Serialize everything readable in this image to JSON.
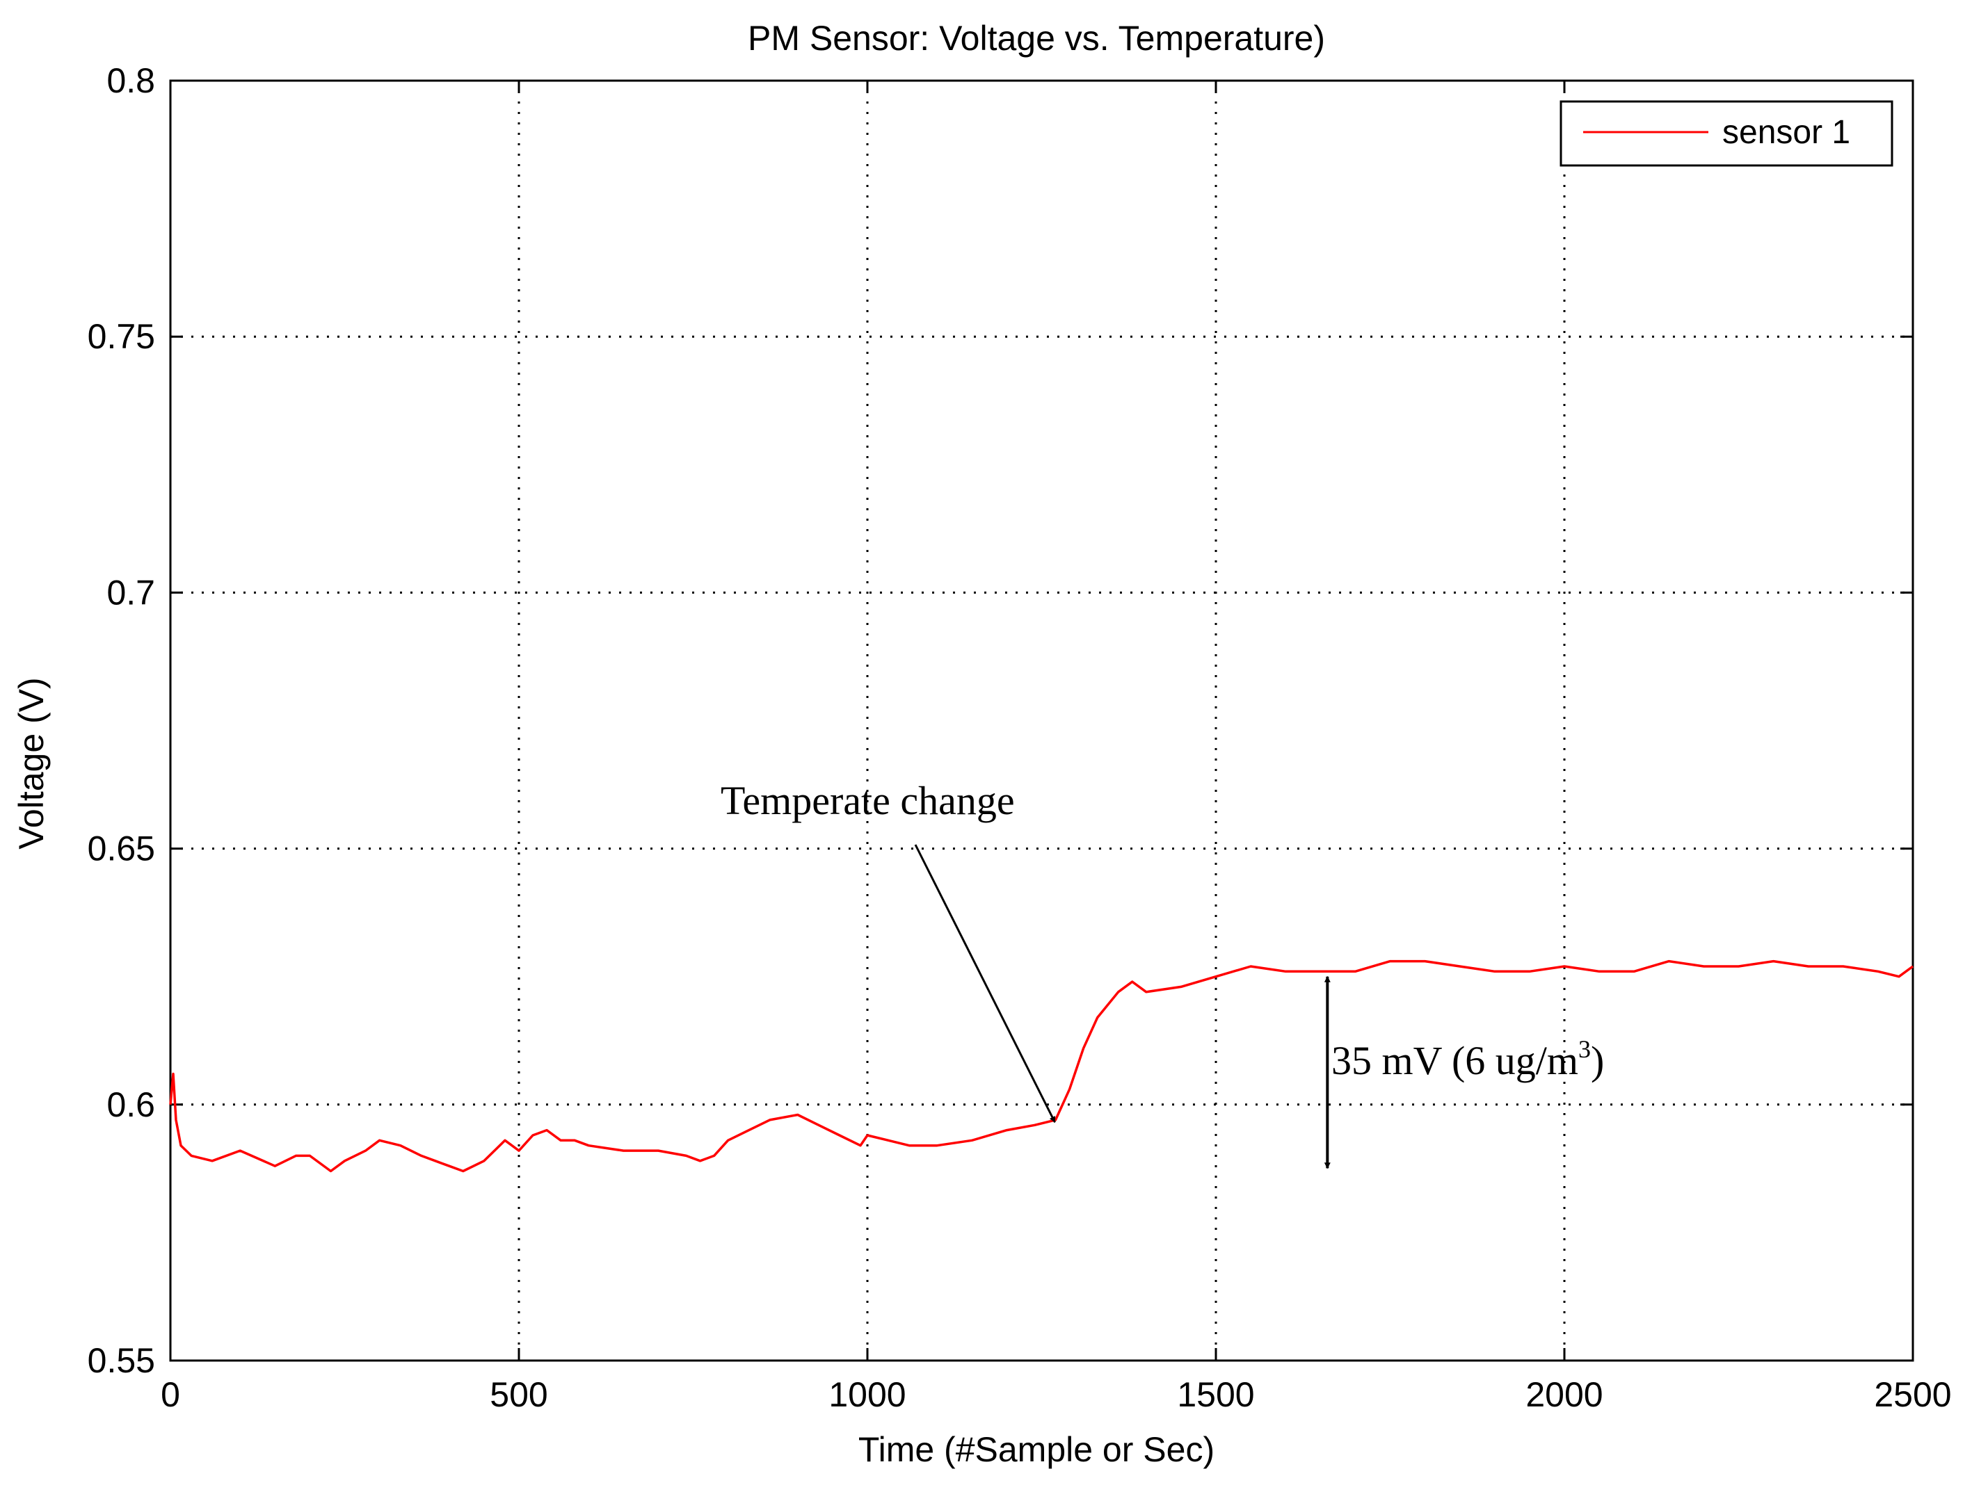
{
  "chart_data": {
    "type": "line",
    "title": "PM Sensor: Voltage vs. Temperature)",
    "xlabel": "Time (#Sample or Sec)",
    "ylabel": "Voltage (V)",
    "xlim": [
      0,
      2500
    ],
    "ylim": [
      0.55,
      0.8
    ],
    "x_ticks": [
      0,
      500,
      1000,
      1500,
      2000,
      2500
    ],
    "x_tick_labels": [
      "0",
      "500",
      "1000",
      "1500",
      "2000",
      "2500"
    ],
    "y_ticks": [
      0.55,
      0.6,
      0.65,
      0.7,
      0.75,
      0.8
    ],
    "y_tick_labels": [
      "0.55",
      "0.6",
      "0.65",
      "0.7",
      "0.75",
      "0.8"
    ],
    "grid": true,
    "legend": {
      "position": "top-right",
      "entries": [
        "sensor 1"
      ]
    },
    "series": [
      {
        "name": "sensor 1",
        "color": "#ff0000",
        "x": [
          0,
          4,
          8,
          15,
          30,
          60,
          100,
          150,
          180,
          200,
          230,
          250,
          280,
          300,
          330,
          360,
          380,
          400,
          420,
          450,
          480,
          500,
          520,
          540,
          560,
          580,
          600,
          650,
          700,
          740,
          760,
          780,
          800,
          830,
          860,
          900,
          930,
          960,
          990,
          1000,
          1030,
          1060,
          1080,
          1100,
          1150,
          1200,
          1240,
          1270,
          1290,
          1310,
          1330,
          1360,
          1380,
          1400,
          1450,
          1500,
          1550,
          1600,
          1650,
          1700,
          1750,
          1800,
          1850,
          1900,
          1950,
          2000,
          2050,
          2100,
          2150,
          2200,
          2250,
          2300,
          2350,
          2400,
          2450,
          2480,
          2500
        ],
        "y": [
          0.6,
          0.606,
          0.597,
          0.592,
          0.59,
          0.589,
          0.591,
          0.588,
          0.59,
          0.59,
          0.587,
          0.589,
          0.591,
          0.593,
          0.592,
          0.59,
          0.589,
          0.588,
          0.587,
          0.589,
          0.593,
          0.591,
          0.594,
          0.595,
          0.593,
          0.593,
          0.592,
          0.591,
          0.591,
          0.59,
          0.589,
          0.59,
          0.593,
          0.595,
          0.597,
          0.598,
          0.596,
          0.594,
          0.592,
          0.594,
          0.593,
          0.592,
          0.592,
          0.592,
          0.593,
          0.595,
          0.596,
          0.597,
          0.603,
          0.611,
          0.617,
          0.622,
          0.624,
          0.622,
          0.623,
          0.625,
          0.627,
          0.626,
          0.626,
          0.626,
          0.628,
          0.628,
          0.627,
          0.626,
          0.626,
          0.627,
          0.626,
          0.626,
          0.628,
          0.627,
          0.627,
          0.628,
          0.627,
          0.627,
          0.626,
          0.625,
          0.627
        ]
      }
    ],
    "annotations": [
      {
        "text": "Temperate change",
        "arrow_to": [
          1265,
          0.596
        ]
      },
      {
        "text": "35 mV (6 ug/m",
        "superscript": "3",
        "suffix": ")",
        "double_arrow_x": 1660,
        "from": 0.625,
        "to": 0.593
      }
    ]
  }
}
